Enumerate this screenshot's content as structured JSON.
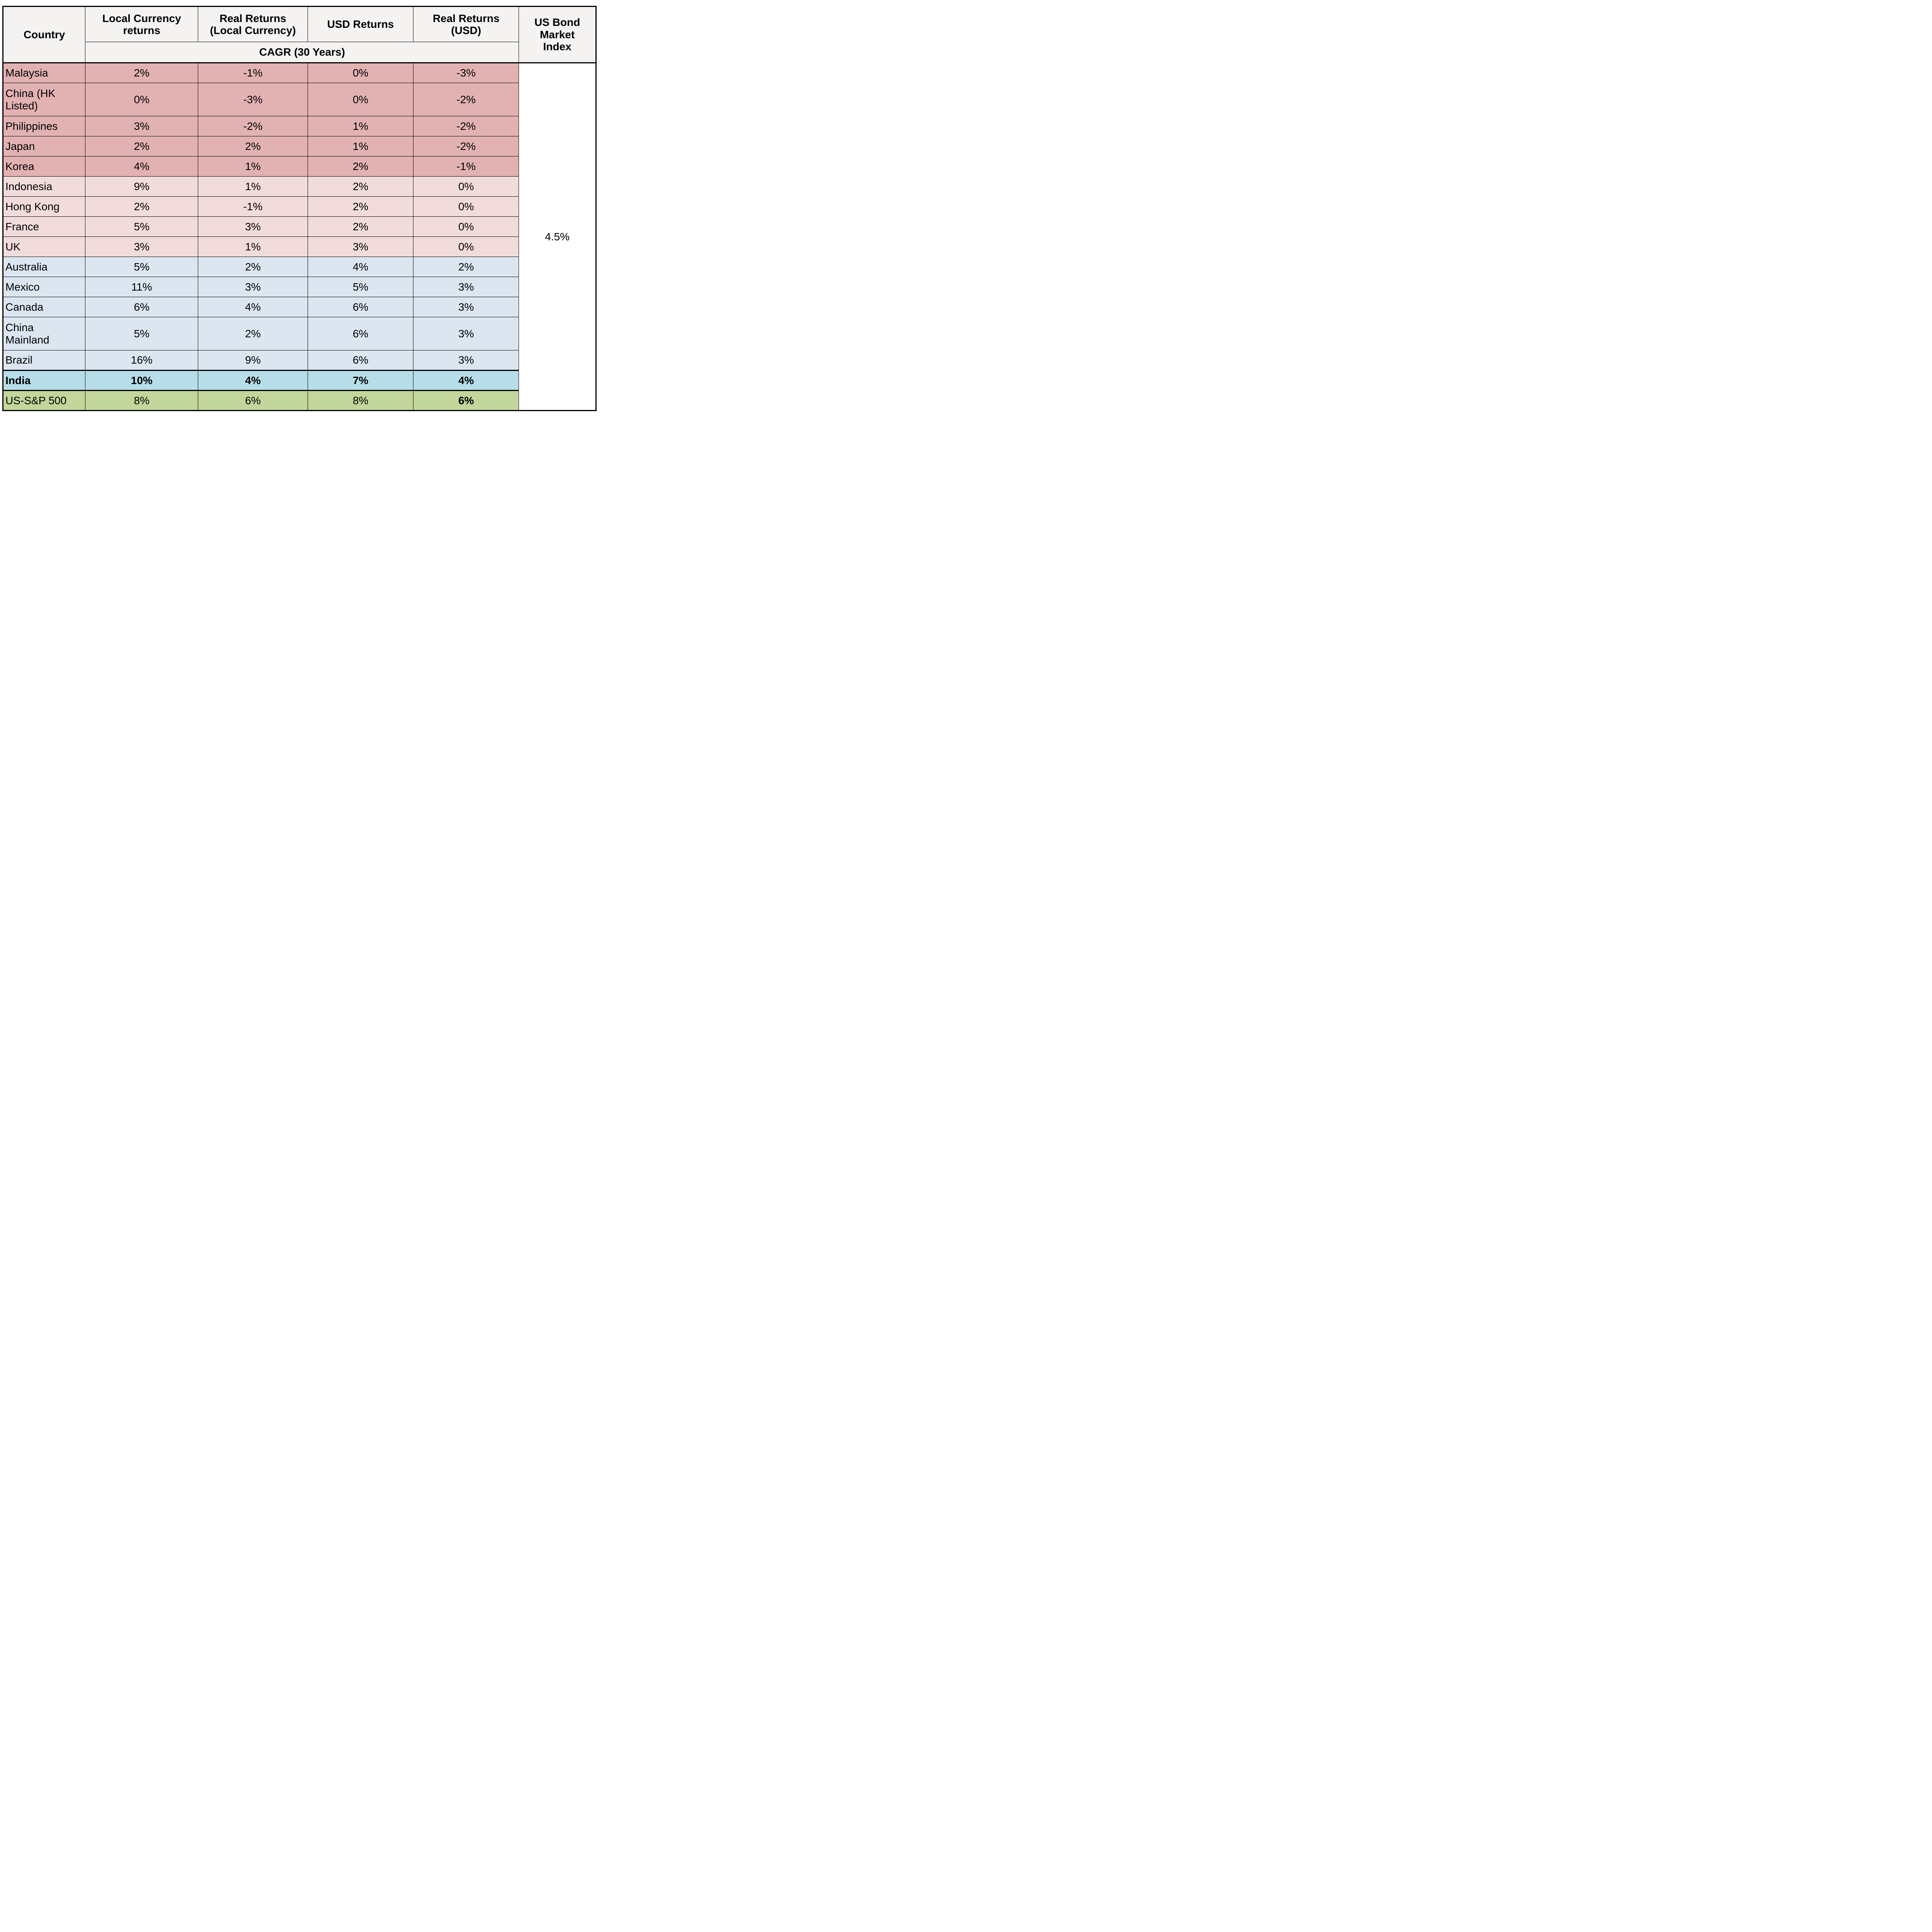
{
  "header": {
    "country": "Country",
    "columns": [
      "Local Currency\nreturns",
      "Real Returns\n(Local Currency)",
      "USD Returns",
      "Real Returns\n(USD)"
    ],
    "cagr": "CAGR (30 Years)",
    "bond": "US Bond\nMarket\nIndex"
  },
  "bond_value": "4.5%",
  "colors": {
    "group_dark_pink": "#E2B2B3",
    "group_light_pink": "#F2DCDB",
    "group_light_blue": "#DCE6F1",
    "india_aqua": "#B7DEE8",
    "sp500_green": "#C3D69B",
    "header_bg": "#F4F3F1",
    "border": "#000000"
  },
  "rows": [
    {
      "name": "Malaysia",
      "values": [
        "2%",
        "-1%",
        "0%",
        "-3%"
      ],
      "group": "pink-dark"
    },
    {
      "name": "China (HK\nListed)",
      "values": [
        "0%",
        "-3%",
        "0%",
        "-2%"
      ],
      "group": "pink-dark",
      "tall": true
    },
    {
      "name": "Philippines",
      "values": [
        "3%",
        "-2%",
        "1%",
        "-2%"
      ],
      "group": "pink-dark"
    },
    {
      "name": "Japan",
      "values": [
        "2%",
        "2%",
        "1%",
        "-2%"
      ],
      "group": "pink-dark"
    },
    {
      "name": "Korea",
      "values": [
        "4%",
        "1%",
        "2%",
        "-1%"
      ],
      "group": "pink-dark"
    },
    {
      "name": "Indonesia",
      "values": [
        "9%",
        "1%",
        "2%",
        "0%"
      ],
      "group": "pink-light"
    },
    {
      "name": "Hong Kong",
      "values": [
        "2%",
        "-1%",
        "2%",
        "0%"
      ],
      "group": "pink-light"
    },
    {
      "name": "France",
      "values": [
        "5%",
        "3%",
        "2%",
        "0%"
      ],
      "group": "pink-light"
    },
    {
      "name": "UK",
      "values": [
        "3%",
        "1%",
        "3%",
        "0%"
      ],
      "group": "pink-light"
    },
    {
      "name": "Australia",
      "values": [
        "5%",
        "2%",
        "4%",
        "2%"
      ],
      "group": "blue"
    },
    {
      "name": "Mexico",
      "values": [
        "11%",
        "3%",
        "5%",
        "3%"
      ],
      "group": "blue"
    },
    {
      "name": "Canada",
      "values": [
        "6%",
        "4%",
        "6%",
        "3%"
      ],
      "group": "blue"
    },
    {
      "name": "China\nMainland",
      "values": [
        "5%",
        "2%",
        "6%",
        "3%"
      ],
      "group": "blue",
      "tall": true
    },
    {
      "name": "Brazil",
      "values": [
        "16%",
        "9%",
        "6%",
        "3%"
      ],
      "group": "blue"
    },
    {
      "name": "India",
      "values": [
        "10%",
        "4%",
        "7%",
        "4%"
      ],
      "group": "aqua",
      "bold": true,
      "thick_top": true
    },
    {
      "name": "US-S&P 500",
      "values": [
        "8%",
        "6%",
        "8%",
        "6%"
      ],
      "group": "green",
      "thick_top": true,
      "bold_last": true
    }
  ]
}
